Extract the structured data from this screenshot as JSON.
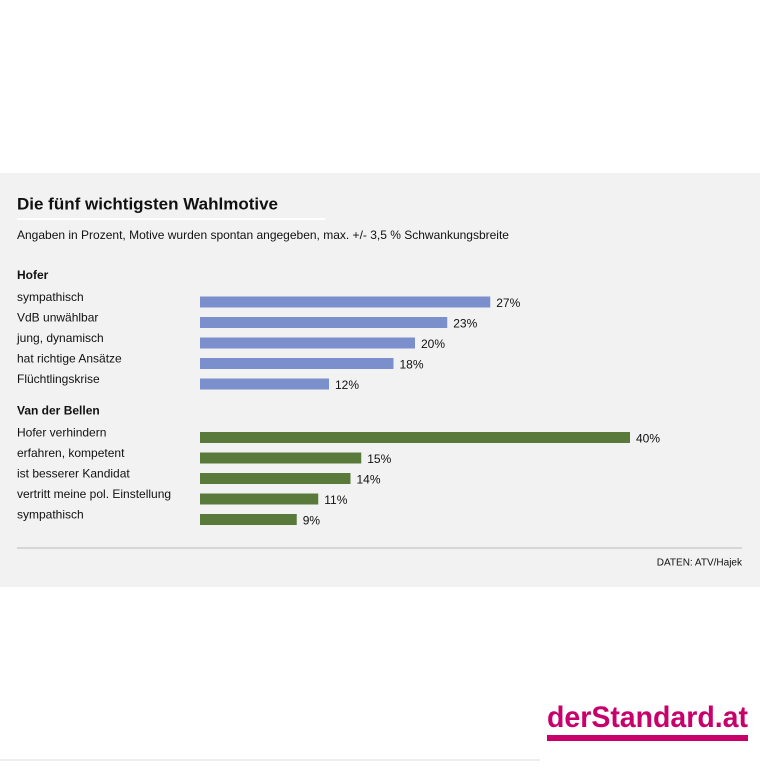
{
  "chart_data": {
    "type": "bar",
    "orientation": "horizontal",
    "title": "Die fünf wichtigsten Wahlmotive",
    "subtitle": "Angaben in Prozent, Motive wurden spontan angegeben, max. +/- 3,5 % Schwankungsbreite",
    "source": "DATEN: ATV/Hajek",
    "series": [
      {
        "name": "Hofer",
        "color": "#7b8fcc",
        "categories": [
          "sympathisch",
          "VdB unwählbar",
          "jung, dynamisch",
          "hat richtige Ansätze",
          "Flüchtlingskrise"
        ],
        "values": [
          27,
          23,
          20,
          18,
          12
        ],
        "value_labels": [
          "27%",
          "23%",
          "20%",
          "18%",
          "12%"
        ]
      },
      {
        "name": "Van der Bellen",
        "color": "#5a7a3c",
        "categories": [
          "Hofer verhindern",
          "erfahren, kompetent",
          "ist besserer Kandidat",
          "vertritt meine pol. Einstellung",
          "sympathisch"
        ],
        "values": [
          40,
          15,
          14,
          11,
          9
        ],
        "value_labels": [
          "40%",
          "15%",
          "14%",
          "11%",
          "9%"
        ]
      }
    ]
  },
  "logo": "derStandard.at"
}
